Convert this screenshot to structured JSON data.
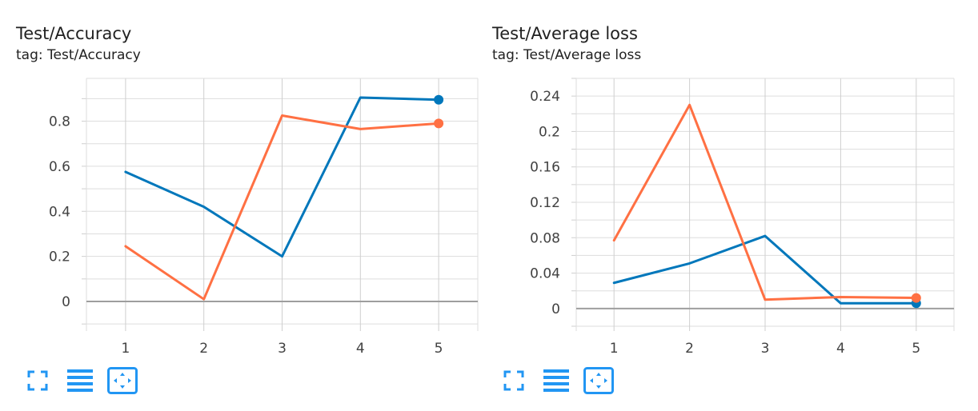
{
  "colors": {
    "series_blue": "#0077bb",
    "series_orange": "#ff7043",
    "icon_blue": "#2196f3",
    "zero_line": "#9e9e9e",
    "grid": "#dddddd"
  },
  "cards": [
    {
      "title": "Test/Accuracy",
      "tag": "tag: Test/Accuracy",
      "toolbar": {
        "icons": [
          "fullscreen-icon",
          "toggle-log-scale-icon",
          "fit-domain-icon"
        ]
      }
    },
    {
      "title": "Test/Average loss",
      "tag": "tag: Test/Average loss",
      "toolbar": {
        "icons": [
          "fullscreen-icon",
          "toggle-log-scale-icon",
          "fit-domain-icon"
        ]
      }
    }
  ],
  "chart_data": [
    {
      "type": "line",
      "title": "Test/Accuracy",
      "x": [
        1,
        2,
        3,
        4,
        5
      ],
      "xlim": [
        0.5,
        5.5
      ],
      "x_ticks": [
        "1",
        "2",
        "3",
        "4",
        "5"
      ],
      "ylim": [
        -0.11,
        0.99
      ],
      "y_ticks": [
        0,
        0.2,
        0.4,
        0.6,
        0.8
      ],
      "y_tick_labels": [
        "0",
        "0.2",
        "0.4",
        "0.6",
        "0.8"
      ],
      "y_minor_step": 0.1,
      "grid": true,
      "series": [
        {
          "color": "#0077bb",
          "values": [
            0.575,
            0.42,
            0.2,
            0.905,
            0.895
          ]
        },
        {
          "color": "#ff7043",
          "values": [
            0.245,
            0.01,
            0.825,
            0.765,
            0.79
          ]
        }
      ]
    },
    {
      "type": "line",
      "title": "Test/Average loss",
      "x": [
        1,
        2,
        3,
        4,
        5
      ],
      "xlim": [
        0.5,
        5.5
      ],
      "x_ticks": [
        "1",
        "2",
        "3",
        "4",
        "5"
      ],
      "ylim": [
        -0.02,
        0.26
      ],
      "y_ticks": [
        0,
        0.04,
        0.08,
        0.12,
        0.16,
        0.2,
        0.24
      ],
      "y_tick_labels": [
        "0",
        "0.04",
        "0.08",
        "0.12",
        "0.16",
        "0.2",
        "0.24"
      ],
      "y_minor_step": 0.02,
      "grid": true,
      "series": [
        {
          "color": "#0077bb",
          "values": [
            0.029,
            0.051,
            0.082,
            0.006,
            0.006
          ]
        },
        {
          "color": "#ff7043",
          "values": [
            0.077,
            0.23,
            0.01,
            0.013,
            0.012
          ]
        }
      ]
    }
  ]
}
